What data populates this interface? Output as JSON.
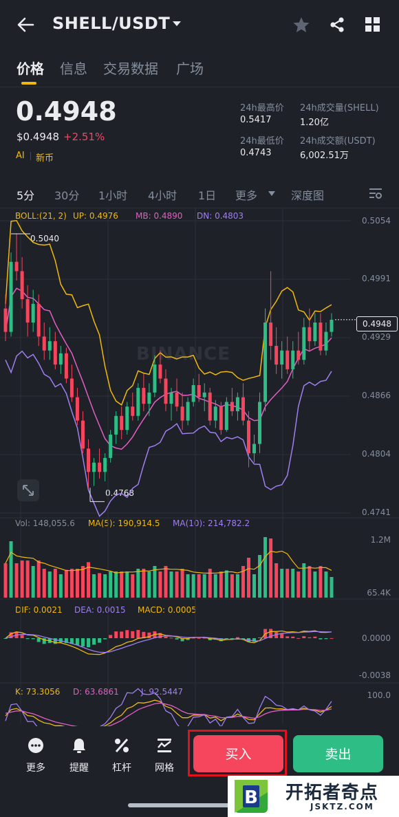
{
  "header": {
    "pair": "SHELL/USDT"
  },
  "tabs": [
    {
      "label": "价格",
      "active": true
    },
    {
      "label": "信息"
    },
    {
      "label": "交易数据"
    },
    {
      "label": "广场"
    }
  ],
  "ticker": {
    "last_price": "0.4948",
    "usd_price": "$0.4948",
    "change": "+2.51%",
    "tag_ai": "AI",
    "tag_new": "新币",
    "stats": {
      "high_label": "24h最高价",
      "high": "0.5417",
      "vol_label": "24h成交量(SHELL)",
      "vol": "1.20亿",
      "low_label": "24h最低价",
      "low": "0.4743",
      "turnover_label": "24h成交额(USDT)",
      "turnover": "6,002.51万"
    }
  },
  "intervals": [
    {
      "label": "5分",
      "active": true
    },
    {
      "label": "30分"
    },
    {
      "label": "1小时"
    },
    {
      "label": "4小时"
    },
    {
      "label": "1日"
    },
    {
      "label": "更多"
    },
    {
      "label": "深度图"
    }
  ],
  "indicators": {
    "boll": "BOLL:(21, 2)",
    "up": "UP: 0.4976",
    "mb": "MB: 0.4890",
    "dn": "DN: 0.4803",
    "vol": "Vol: 148,055.6",
    "ma5": "MA(5): 190,914.5",
    "ma10": "MA(10): 214,782.2",
    "dif": "DIF: 0.0021",
    "dea": "DEA: 0.0015",
    "macd": "MACD: 0.0005",
    "k": "K: 73.3056",
    "d": "D: 63.6861",
    "j": "J: 92.5447"
  },
  "chart_data": {
    "type": "candlestick",
    "price_axis": [
      "0.5054",
      "0.4991",
      "0.4929",
      "0.4866",
      "0.4804",
      "0.4741"
    ],
    "current_price_label": "0.4948",
    "high_marker": "0.5040",
    "low_marker": "0.4768",
    "volume_axis": [
      "1.2M",
      "65.4K"
    ],
    "macd_axis": [
      "0.0000",
      "-0.0038"
    ],
    "kdj_axis": [
      "100.0"
    ],
    "watermark": "BINANCE",
    "candles": [
      {
        "o": 0.496,
        "h": 0.4975,
        "l": 0.4925,
        "c": 0.4935
      },
      {
        "o": 0.4935,
        "h": 0.502,
        "l": 0.493,
        "c": 0.501
      },
      {
        "o": 0.501,
        "h": 0.504,
        "l": 0.499,
        "c": 0.5
      },
      {
        "o": 0.5,
        "h": 0.5015,
        "l": 0.496,
        "c": 0.497
      },
      {
        "o": 0.497,
        "h": 0.4985,
        "l": 0.493,
        "c": 0.4945
      },
      {
        "o": 0.4945,
        "h": 0.498,
        "l": 0.4935,
        "c": 0.4965
      },
      {
        "o": 0.4965,
        "h": 0.4975,
        "l": 0.492,
        "c": 0.493
      },
      {
        "o": 0.493,
        "h": 0.4945,
        "l": 0.4905,
        "c": 0.4915
      },
      {
        "o": 0.4915,
        "h": 0.494,
        "l": 0.4905,
        "c": 0.4925
      },
      {
        "o": 0.4925,
        "h": 0.4935,
        "l": 0.4895,
        "c": 0.49
      },
      {
        "o": 0.49,
        "h": 0.492,
        "l": 0.489,
        "c": 0.4912
      },
      {
        "o": 0.4912,
        "h": 0.4918,
        "l": 0.488,
        "c": 0.4885
      },
      {
        "o": 0.4885,
        "h": 0.49,
        "l": 0.486,
        "c": 0.4865
      },
      {
        "o": 0.4865,
        "h": 0.4875,
        "l": 0.4835,
        "c": 0.484
      },
      {
        "o": 0.484,
        "h": 0.485,
        "l": 0.4805,
        "c": 0.481
      },
      {
        "o": 0.481,
        "h": 0.482,
        "l": 0.4768,
        "c": 0.4785
      },
      {
        "o": 0.4785,
        "h": 0.48,
        "l": 0.477,
        "c": 0.4795
      },
      {
        "o": 0.4795,
        "h": 0.481,
        "l": 0.4778,
        "c": 0.4785
      },
      {
        "o": 0.4785,
        "h": 0.4805,
        "l": 0.4775,
        "c": 0.48
      },
      {
        "o": 0.48,
        "h": 0.483,
        "l": 0.4795,
        "c": 0.4825
      },
      {
        "o": 0.4825,
        "h": 0.485,
        "l": 0.4815,
        "c": 0.4845
      },
      {
        "o": 0.4845,
        "h": 0.4855,
        "l": 0.482,
        "c": 0.483
      },
      {
        "o": 0.483,
        "h": 0.486,
        "l": 0.4825,
        "c": 0.4855
      },
      {
        "o": 0.4855,
        "h": 0.487,
        "l": 0.484,
        "c": 0.4845
      },
      {
        "o": 0.4845,
        "h": 0.488,
        "l": 0.484,
        "c": 0.4875
      },
      {
        "o": 0.4875,
        "h": 0.489,
        "l": 0.485,
        "c": 0.4858
      },
      {
        "o": 0.4858,
        "h": 0.488,
        "l": 0.4845,
        "c": 0.487
      },
      {
        "o": 0.487,
        "h": 0.491,
        "l": 0.4865,
        "c": 0.49
      },
      {
        "o": 0.49,
        "h": 0.4915,
        "l": 0.488,
        "c": 0.4885
      },
      {
        "o": 0.4885,
        "h": 0.4895,
        "l": 0.485,
        "c": 0.4858
      },
      {
        "o": 0.4858,
        "h": 0.4875,
        "l": 0.484,
        "c": 0.487
      },
      {
        "o": 0.487,
        "h": 0.4885,
        "l": 0.485,
        "c": 0.4855
      },
      {
        "o": 0.4855,
        "h": 0.487,
        "l": 0.483,
        "c": 0.484
      },
      {
        "o": 0.484,
        "h": 0.4865,
        "l": 0.4835,
        "c": 0.486
      },
      {
        "o": 0.486,
        "h": 0.4885,
        "l": 0.4855,
        "c": 0.4878
      },
      {
        "o": 0.4878,
        "h": 0.489,
        "l": 0.486,
        "c": 0.4865
      },
      {
        "o": 0.4865,
        "h": 0.488,
        "l": 0.485,
        "c": 0.487
      },
      {
        "o": 0.487,
        "h": 0.4875,
        "l": 0.4835,
        "c": 0.484
      },
      {
        "o": 0.484,
        "h": 0.4862,
        "l": 0.4832,
        "c": 0.4855
      },
      {
        "o": 0.4855,
        "h": 0.486,
        "l": 0.4825,
        "c": 0.483
      },
      {
        "o": 0.483,
        "h": 0.4865,
        "l": 0.4828,
        "c": 0.486
      },
      {
        "o": 0.486,
        "h": 0.4875,
        "l": 0.4845,
        "c": 0.485
      },
      {
        "o": 0.485,
        "h": 0.487,
        "l": 0.484,
        "c": 0.4865
      },
      {
        "o": 0.4865,
        "h": 0.488,
        "l": 0.4835,
        "c": 0.484
      },
      {
        "o": 0.484,
        "h": 0.485,
        "l": 0.479,
        "c": 0.4805
      },
      {
        "o": 0.4805,
        "h": 0.4825,
        "l": 0.4795,
        "c": 0.4815
      },
      {
        "o": 0.4815,
        "h": 0.487,
        "l": 0.4805,
        "c": 0.486
      },
      {
        "o": 0.486,
        "h": 0.496,
        "l": 0.485,
        "c": 0.4945
      },
      {
        "o": 0.4945,
        "h": 0.5,
        "l": 0.4905,
        "c": 0.492
      },
      {
        "o": 0.492,
        "h": 0.494,
        "l": 0.489,
        "c": 0.49
      },
      {
        "o": 0.49,
        "h": 0.4925,
        "l": 0.4885,
        "c": 0.4915
      },
      {
        "o": 0.4915,
        "h": 0.493,
        "l": 0.489,
        "c": 0.4895
      },
      {
        "o": 0.4895,
        "h": 0.4925,
        "l": 0.4885,
        "c": 0.4915
      },
      {
        "o": 0.4915,
        "h": 0.4935,
        "l": 0.49,
        "c": 0.4905
      },
      {
        "o": 0.4905,
        "h": 0.495,
        "l": 0.49,
        "c": 0.494
      },
      {
        "o": 0.494,
        "h": 0.496,
        "l": 0.4915,
        "c": 0.4925
      },
      {
        "o": 0.4925,
        "h": 0.4955,
        "l": 0.492,
        "c": 0.4945
      },
      {
        "o": 0.4945,
        "h": 0.4955,
        "l": 0.491,
        "c": 0.4915
      },
      {
        "o": 0.4915,
        "h": 0.4945,
        "l": 0.491,
        "c": 0.4935
      },
      {
        "o": 0.4935,
        "h": 0.4955,
        "l": 0.493,
        "c": 0.4948
      }
    ]
  },
  "bottom_bar": {
    "more": "更多",
    "alert": "提醒",
    "leverage": "杠杆",
    "grid": "网格",
    "buy": "买入",
    "sell": "卖出"
  },
  "watermark_badge": {
    "cn": "开拓者奇点",
    "en": "JSKTZ.COM"
  }
}
